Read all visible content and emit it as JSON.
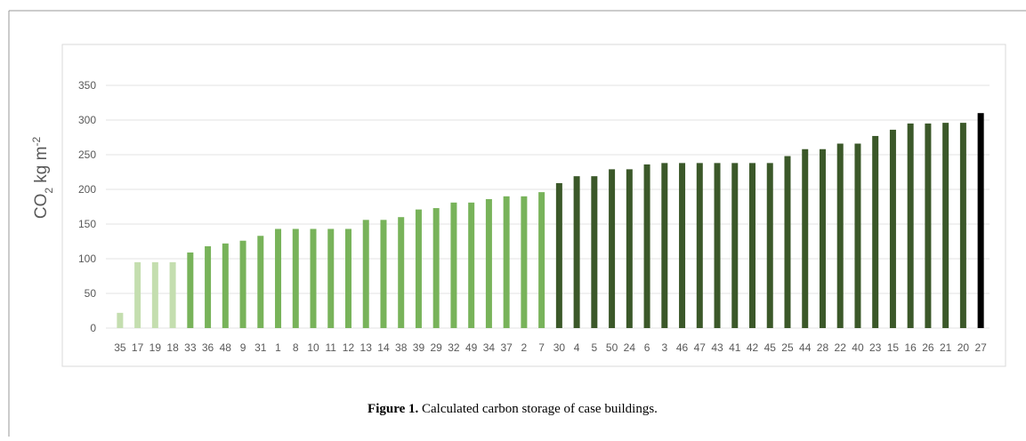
{
  "chart_data": {
    "type": "bar",
    "y_label_parts": [
      "CO",
      "2",
      " kg m",
      "-2"
    ],
    "categories": [
      "35",
      "17",
      "19",
      "18",
      "33",
      "36",
      "48",
      "9",
      "31",
      "1",
      "8",
      "10",
      "11",
      "12",
      "13",
      "14",
      "38",
      "39",
      "29",
      "32",
      "49",
      "34",
      "37",
      "2",
      "7",
      "30",
      "4",
      "5",
      "50",
      "24",
      "6",
      "3",
      "46",
      "47",
      "43",
      "41",
      "42",
      "45",
      "25",
      "44",
      "28",
      "22",
      "40",
      "23",
      "15",
      "16",
      "26",
      "21",
      "20",
      "27"
    ],
    "values": [
      22,
      95,
      95,
      95,
      109,
      118,
      122,
      126,
      133,
      143,
      143,
      143,
      143,
      143,
      156,
      156,
      160,
      171,
      173,
      181,
      181,
      186,
      190,
      190,
      196,
      209,
      219,
      219,
      229,
      229,
      236,
      238,
      238,
      238,
      238,
      238,
      238,
      238,
      248,
      258,
      258,
      266,
      266,
      277,
      286,
      295,
      295,
      296,
      296,
      310
    ],
    "colors": [
      "#c4deaf",
      "#c4deaf",
      "#c4deaf",
      "#c4deaf",
      "#78b35a",
      "#78b35a",
      "#78b35a",
      "#78b35a",
      "#78b35a",
      "#78b35a",
      "#78b35a",
      "#78b35a",
      "#78b35a",
      "#78b35a",
      "#78b35a",
      "#78b35a",
      "#78b35a",
      "#78b35a",
      "#78b35a",
      "#78b35a",
      "#78b35a",
      "#78b35a",
      "#78b35a",
      "#78b35a",
      "#78b35a",
      "#3b5829",
      "#3b5829",
      "#3b5829",
      "#3b5829",
      "#3b5829",
      "#3b5829",
      "#3b5829",
      "#3b5829",
      "#3b5829",
      "#3b5829",
      "#3b5829",
      "#3b5829",
      "#3b5829",
      "#3b5829",
      "#3b5829",
      "#3b5829",
      "#3b5829",
      "#3b5829",
      "#3b5829",
      "#3b5829",
      "#3b5829",
      "#3b5829",
      "#3b5829",
      "#3b5829",
      "#000000"
    ],
    "ylim": [
      0,
      350
    ],
    "yticks": [
      0,
      50,
      100,
      150,
      200,
      250,
      300,
      350
    ],
    "grid": true
  },
  "caption": {
    "label": "Figure 1.",
    "text": " Calculated carbon storage of case buildings."
  }
}
